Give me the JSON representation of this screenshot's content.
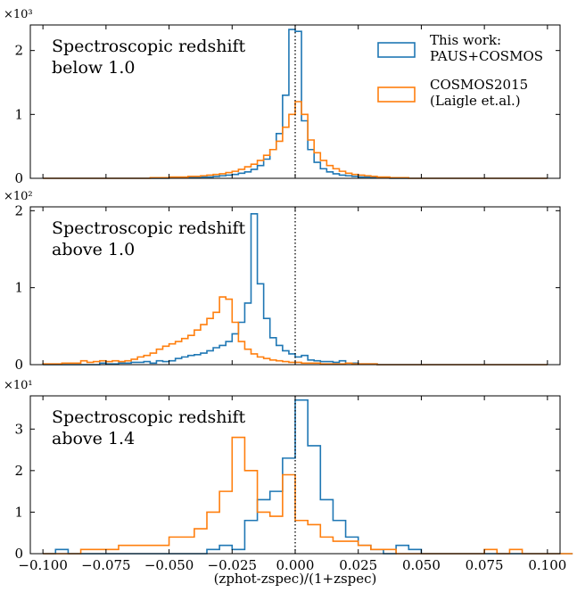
{
  "colors": {
    "this_work": "#1f77b4",
    "cosmos2015": "#ff7f0e",
    "axes": "#000000"
  },
  "legend": {
    "items": [
      {
        "lines": [
          "This work:",
          "PAUS+COSMOS"
        ],
        "color": "#1f77b4"
      },
      {
        "lines": [
          "COSMOS2015",
          "(Laigle et.al.)"
        ],
        "color": "#ff7f0e"
      }
    ]
  },
  "x_axis": {
    "label": "(zphot-zspec)/(1+zspec)",
    "ticks": [
      "−0.100",
      "−0.075",
      "−0.050",
      "−0.025",
      "0.000",
      "0.025",
      "0.050",
      "0.075",
      "0.100"
    ],
    "xlim": [
      -0.105,
      0.105
    ]
  },
  "chart_data": [
    {
      "type": "histogram",
      "annotation": [
        "Spectroscopic redshift",
        "below 1.0"
      ],
      "scale_label": "×10³",
      "yticks": [
        "0",
        "1",
        "2"
      ],
      "ylim": [
        0,
        2.4
      ],
      "bin_width": 0.0025,
      "x_start": -0.1,
      "series": [
        {
          "name": "This work: PAUS+COSMOS",
          "color_key": "this_work",
          "x_start": -0.1,
          "values": [
            0,
            0,
            0,
            0,
            0,
            0,
            0,
            0,
            0,
            0,
            0,
            0,
            0,
            0,
            0,
            0,
            0,
            0,
            0,
            0,
            0.01,
            0.01,
            0.01,
            0.01,
            0.01,
            0.02,
            0.02,
            0.03,
            0.04,
            0.05,
            0.06,
            0.08,
            0.1,
            0.14,
            0.2,
            0.3,
            0.45,
            0.7,
            1.3,
            2.33,
            2.3,
            0.9,
            0.45,
            0.25,
            0.15,
            0.1,
            0.07,
            0.05,
            0.04,
            0.03,
            0.02,
            0.02,
            0.01,
            0.01,
            0.01,
            0,
            0,
            0,
            0,
            0,
            0,
            0,
            0,
            0,
            0,
            0,
            0,
            0,
            0,
            0,
            0,
            0,
            0,
            0,
            0,
            0,
            0,
            0,
            0,
            0
          ]
        },
        {
          "name": "COSMOS2015 (Laigle et.al.)",
          "color_key": "cosmos2015",
          "x_start": -0.1,
          "values": [
            0,
            0,
            0,
            0,
            0,
            0,
            0,
            0,
            0,
            0,
            0,
            0,
            0,
            0,
            0,
            0,
            0,
            0.01,
            0.01,
            0.01,
            0.02,
            0.02,
            0.02,
            0.03,
            0.03,
            0.04,
            0.05,
            0.06,
            0.07,
            0.09,
            0.11,
            0.14,
            0.18,
            0.22,
            0.28,
            0.36,
            0.45,
            0.58,
            0.8,
            1.0,
            1.2,
            1.0,
            0.6,
            0.4,
            0.28,
            0.2,
            0.15,
            0.11,
            0.08,
            0.06,
            0.05,
            0.04,
            0.03,
            0.02,
            0.02,
            0.01,
            0.01,
            0.01,
            0,
            0,
            0,
            0,
            0,
            0,
            0,
            0,
            0,
            0,
            0,
            0,
            0,
            0,
            0,
            0,
            0,
            0,
            0,
            0,
            0,
            0
          ]
        }
      ]
    },
    {
      "type": "histogram",
      "annotation": [
        "Spectroscopic redshift",
        "above 1.0"
      ],
      "scale_label": "×10²",
      "yticks": [
        "0",
        "1",
        "2"
      ],
      "ylim": [
        0,
        2.05
      ],
      "bin_width": 0.0025,
      "x_start": -0.1,
      "series": [
        {
          "name": "This work: PAUS+COSMOS",
          "color_key": "this_work",
          "x_start": -0.1,
          "values": [
            0,
            0,
            0,
            0,
            0,
            0,
            0,
            0,
            0,
            0.02,
            0.01,
            0.01,
            0.02,
            0.02,
            0.03,
            0.03,
            0.04,
            0.02,
            0.05,
            0.04,
            0.05,
            0.08,
            0.1,
            0.12,
            0.13,
            0.15,
            0.18,
            0.22,
            0.25,
            0.3,
            0.4,
            0.55,
            0.8,
            1.96,
            1.05,
            0.6,
            0.35,
            0.25,
            0.18,
            0.14,
            0.1,
            0.12,
            0.06,
            0.05,
            0.04,
            0.04,
            0.03,
            0.05,
            0.02,
            0.02,
            0.01,
            0.01,
            0.01,
            0,
            0,
            0,
            0,
            0,
            0,
            0,
            0,
            0,
            0,
            0,
            0,
            0,
            0,
            0,
            0,
            0,
            0,
            0,
            0,
            0,
            0,
            0,
            0,
            0,
            0,
            0
          ]
        },
        {
          "name": "COSMOS2015 (Laigle et.al.)",
          "color_key": "cosmos2015",
          "x_start": -0.1,
          "values": [
            0.01,
            0.01,
            0.01,
            0.02,
            0.02,
            0.02,
            0.05,
            0.03,
            0.04,
            0.05,
            0.04,
            0.05,
            0.04,
            0.05,
            0.07,
            0.1,
            0.12,
            0.15,
            0.2,
            0.24,
            0.27,
            0.3,
            0.34,
            0.38,
            0.45,
            0.52,
            0.6,
            0.68,
            0.88,
            0.85,
            0.55,
            0.3,
            0.2,
            0.14,
            0.1,
            0.08,
            0.06,
            0.05,
            0.04,
            0.03,
            0.03,
            0.02,
            0.02,
            0.02,
            0.01,
            0.01,
            0.01,
            0.01,
            0.02,
            0.01,
            0.01,
            0.01,
            0.01,
            0,
            0,
            0,
            0,
            0,
            0,
            0,
            0,
            0,
            0,
            0,
            0,
            0,
            0,
            0,
            0,
            0,
            0,
            0,
            0,
            0,
            0,
            0,
            0,
            0,
            0,
            0
          ]
        }
      ]
    },
    {
      "type": "histogram",
      "annotation": [
        "Spectroscopic redshift",
        "above 1.4"
      ],
      "scale_label": "×10¹",
      "yticks": [
        "0",
        "1",
        "2",
        "3"
      ],
      "ylim": [
        0,
        3.8
      ],
      "bin_width": 0.005,
      "x_start": -0.1,
      "series": [
        {
          "name": "This work: PAUS+COSMOS",
          "color_key": "this_work",
          "x_start": -0.1,
          "values": [
            0,
            0.1,
            0,
            0,
            0,
            0,
            0,
            0,
            0,
            0,
            0,
            0,
            0,
            0.1,
            0.2,
            0.1,
            0.8,
            1.3,
            1.5,
            2.3,
            3.7,
            2.6,
            1.3,
            0.8,
            0.4,
            0.2,
            0.1,
            0,
            0.2,
            0.1,
            0,
            0,
            0,
            0,
            0,
            0,
            0,
            0,
            0,
            0,
            0,
            0
          ]
        },
        {
          "name": "COSMOS2015 (Laigle et.al.)",
          "color_key": "cosmos2015",
          "x_start": -0.1,
          "values": [
            0,
            0,
            0,
            0.1,
            0.1,
            0.1,
            0.2,
            0.2,
            0.2,
            0.2,
            0.4,
            0.4,
            0.6,
            1.0,
            1.5,
            2.8,
            2.0,
            1.0,
            0.9,
            1.9,
            0.8,
            0.7,
            0.4,
            0.3,
            0.3,
            0.2,
            0.1,
            0.1,
            0,
            0,
            0,
            0,
            0,
            0,
            0,
            0.1,
            0,
            0.1,
            0,
            0,
            0,
            0
          ]
        }
      ]
    }
  ]
}
